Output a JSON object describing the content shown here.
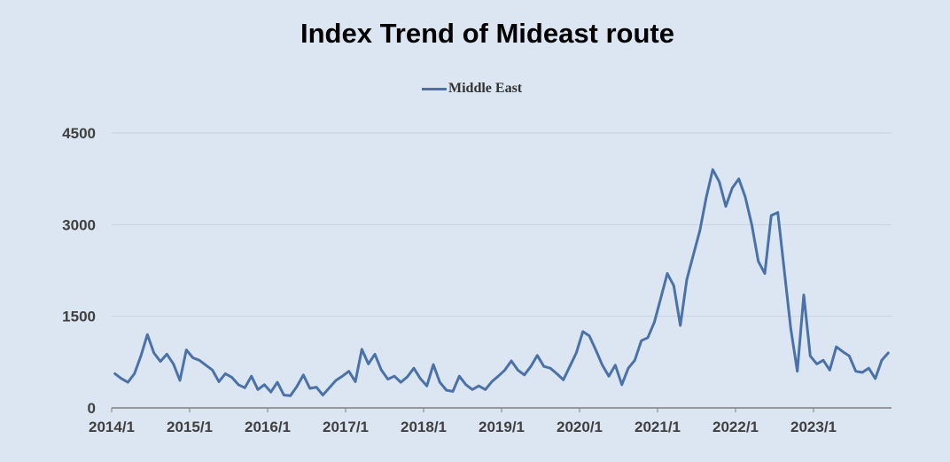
{
  "chart_data": {
    "type": "line",
    "title": "Index Trend of Mideast route",
    "xlabel": "",
    "ylabel": "",
    "ylim": [
      0,
      4500
    ],
    "y_ticks": [
      "0",
      "1500",
      "3000",
      "4500"
    ],
    "x_ticks": [
      "2014/1",
      "2015/1",
      "2016/1",
      "2017/1",
      "2018/1",
      "2019/1",
      "2020/1",
      "2021/1",
      "2022/1",
      "2023/1"
    ],
    "x_range": [
      "2014-01",
      "2023-12"
    ],
    "legend_position": "top-center",
    "grid": "horizontal",
    "series": [
      {
        "name": "Middle East",
        "color": "#4a72a8",
        "points": [
          [
            "2014-01",
            560
          ],
          [
            "2014-02",
            480
          ],
          [
            "2014-03",
            420
          ],
          [
            "2014-04",
            560
          ],
          [
            "2014-05",
            850
          ],
          [
            "2014-06",
            1200
          ],
          [
            "2014-07",
            900
          ],
          [
            "2014-08",
            760
          ],
          [
            "2014-09",
            880
          ],
          [
            "2014-10",
            720
          ],
          [
            "2014-11",
            450
          ],
          [
            "2014-12",
            950
          ],
          [
            "2015-01",
            820
          ],
          [
            "2015-02",
            780
          ],
          [
            "2015-03",
            700
          ],
          [
            "2015-04",
            620
          ],
          [
            "2015-05",
            430
          ],
          [
            "2015-06",
            560
          ],
          [
            "2015-07",
            500
          ],
          [
            "2015-08",
            380
          ],
          [
            "2015-09",
            330
          ],
          [
            "2015-10",
            520
          ],
          [
            "2015-11",
            300
          ],
          [
            "2015-12",
            380
          ],
          [
            "2016-01",
            260
          ],
          [
            "2016-02",
            420
          ],
          [
            "2016-03",
            210
          ],
          [
            "2016-04",
            200
          ],
          [
            "2016-05",
            350
          ],
          [
            "2016-06",
            540
          ],
          [
            "2016-07",
            320
          ],
          [
            "2016-08",
            340
          ],
          [
            "2016-09",
            210
          ],
          [
            "2016-10",
            330
          ],
          [
            "2016-11",
            450
          ],
          [
            "2016-12",
            520
          ],
          [
            "2017-01",
            600
          ],
          [
            "2017-02",
            430
          ],
          [
            "2017-03",
            960
          ],
          [
            "2017-04",
            720
          ],
          [
            "2017-05",
            880
          ],
          [
            "2017-06",
            620
          ],
          [
            "2017-07",
            470
          ],
          [
            "2017-08",
            520
          ],
          [
            "2017-09",
            420
          ],
          [
            "2017-10",
            510
          ],
          [
            "2017-11",
            650
          ],
          [
            "2017-12",
            480
          ],
          [
            "2018-01",
            360
          ],
          [
            "2018-02",
            710
          ],
          [
            "2018-03",
            420
          ],
          [
            "2018-04",
            290
          ],
          [
            "2018-05",
            270
          ],
          [
            "2018-06",
            520
          ],
          [
            "2018-07",
            380
          ],
          [
            "2018-08",
            300
          ],
          [
            "2018-09",
            360
          ],
          [
            "2018-10",
            300
          ],
          [
            "2018-11",
            430
          ],
          [
            "2018-12",
            520
          ],
          [
            "2019-01",
            620
          ],
          [
            "2019-02",
            770
          ],
          [
            "2019-03",
            620
          ],
          [
            "2019-04",
            540
          ],
          [
            "2019-05",
            680
          ],
          [
            "2019-06",
            860
          ],
          [
            "2019-07",
            680
          ],
          [
            "2019-08",
            650
          ],
          [
            "2019-09",
            560
          ],
          [
            "2019-10",
            460
          ],
          [
            "2019-11",
            680
          ],
          [
            "2019-12",
            900
          ],
          [
            "2020-01",
            1250
          ],
          [
            "2020-02",
            1180
          ],
          [
            "2020-03",
            950
          ],
          [
            "2020-04",
            700
          ],
          [
            "2020-05",
            520
          ],
          [
            "2020-06",
            700
          ],
          [
            "2020-07",
            380
          ],
          [
            "2020-08",
            650
          ],
          [
            "2020-09",
            780
          ],
          [
            "2020-10",
            1100
          ],
          [
            "2020-11",
            1150
          ],
          [
            "2020-12",
            1400
          ],
          [
            "2021-01",
            1800
          ],
          [
            "2021-02",
            2200
          ],
          [
            "2021-03",
            2000
          ],
          [
            "2021-04",
            1350
          ],
          [
            "2021-05",
            2100
          ],
          [
            "2021-06",
            2500
          ],
          [
            "2021-07",
            2900
          ],
          [
            "2021-08",
            3450
          ],
          [
            "2021-09",
            3900
          ],
          [
            "2021-10",
            3700
          ],
          [
            "2021-11",
            3300
          ],
          [
            "2021-12",
            3600
          ],
          [
            "2022-01",
            3750
          ],
          [
            "2022-02",
            3450
          ],
          [
            "2022-03",
            3000
          ],
          [
            "2022-04",
            2400
          ],
          [
            "2022-05",
            2200
          ],
          [
            "2022-06",
            3150
          ],
          [
            "2022-07",
            3200
          ],
          [
            "2022-08",
            2250
          ],
          [
            "2022-09",
            1300
          ],
          [
            "2022-10",
            600
          ],
          [
            "2022-11",
            1850
          ],
          [
            "2022-12",
            850
          ],
          [
            "2023-01",
            720
          ],
          [
            "2023-02",
            780
          ],
          [
            "2023-03",
            620
          ],
          [
            "2023-04",
            1000
          ],
          [
            "2023-05",
            920
          ],
          [
            "2023-06",
            850
          ],
          [
            "2023-07",
            600
          ],
          [
            "2023-08",
            580
          ],
          [
            "2023-09",
            650
          ],
          [
            "2023-10",
            480
          ],
          [
            "2023-11",
            780
          ],
          [
            "2023-12",
            900
          ]
        ]
      }
    ]
  }
}
